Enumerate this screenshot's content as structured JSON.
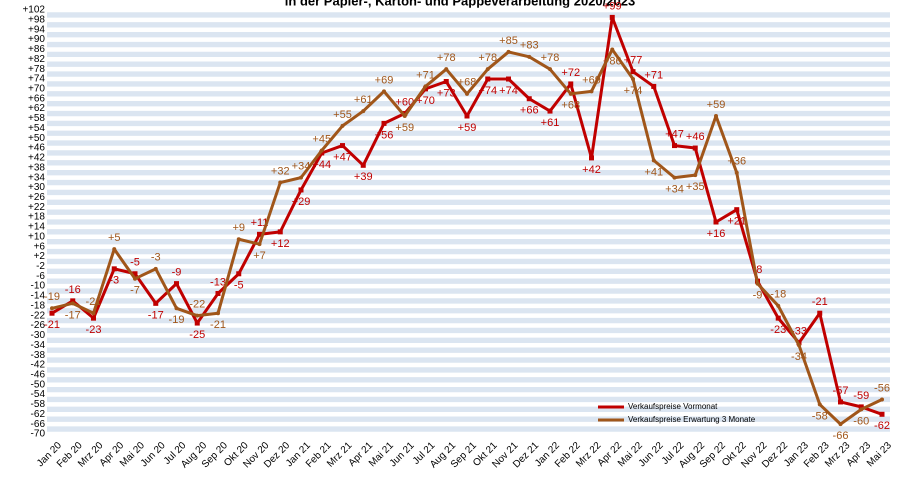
{
  "chart_data": {
    "type": "line",
    "title": "in der Papier-, Karton- und Pappeverarbeitung 2020/2023",
    "categories": [
      "Jan 20",
      "Feb 20",
      "Mrz 20",
      "Apr 20",
      "Mai 20",
      "Jun 20",
      "Jul 20",
      "Aug 20",
      "Sep 20",
      "Okt 20",
      "Nov 20",
      "Dez 20",
      "Jan 21",
      "Feb 21",
      "Mrz 21",
      "Apr 21",
      "Mai 21",
      "Jun 21",
      "Jul 21",
      "Aug 21",
      "Sep 21",
      "Okt 21",
      "Nov 21",
      "Dez 21",
      "Jan 22",
      "Feb 22",
      "Mrz 22",
      "Apr 22",
      "Mai 22",
      "Jun 22",
      "Jul 22",
      "Aug 22",
      "Sep 22",
      "Okt 22",
      "Nov 22",
      "Dez 22",
      "Jan 23",
      "Feb 23",
      "Mrz 23",
      "Apr 23",
      "Mai 23"
    ],
    "series": [
      {
        "name": "Verkaufspreise Vormonat",
        "color": "#c00000",
        "values": [
          -21,
          -16,
          -23,
          -3,
          -5,
          -17,
          -9,
          -25,
          -13,
          -5,
          11,
          12,
          29,
          44,
          47,
          39,
          56,
          60,
          70,
          73,
          59,
          74,
          74,
          66,
          61,
          72,
          42,
          99,
          77,
          71,
          47,
          46,
          16,
          21,
          -8,
          -23,
          -33,
          -21,
          -57,
          -59,
          -62
        ],
        "value_labels": [
          "-21",
          "-16",
          "-23",
          "-3",
          "-5",
          "-17",
          "-9",
          "-25",
          "-13",
          "-5",
          "+11",
          "+12",
          "+29",
          "+44",
          "+47",
          "+39",
          "+56",
          "+60",
          "+70",
          "+73",
          "+59",
          "+74",
          "+74",
          "+66",
          "+61",
          "+72",
          "+42",
          "+99",
          "+77",
          "+71",
          "+47",
          "+46",
          "+16",
          "+21",
          "-8",
          "-23",
          "-33",
          "-21",
          "-57",
          "-59",
          "-62"
        ]
      },
      {
        "name": "Verkaufspreise Erwartung 3 Monate",
        "color": "#a0561a",
        "values": [
          -19,
          -17,
          -21,
          5,
          -7,
          -3,
          -19,
          -22,
          -21,
          9,
          7,
          32,
          34,
          45,
          55,
          61,
          69,
          59,
          71,
          78,
          68,
          78,
          85,
          83,
          78,
          68,
          69,
          86,
          74,
          41,
          34,
          35,
          59,
          36,
          -9,
          -18,
          -34,
          -58,
          -66,
          -60,
          -56
        ],
        "value_labels": [
          "-19",
          "-17",
          "-21",
          "+5",
          "-7",
          "-3",
          "-19",
          "-22",
          "-21",
          "+9",
          "+7",
          "+32",
          "+34",
          "+45",
          "+55",
          "+61",
          "+69",
          "+59",
          "+71",
          "+78",
          "+68",
          "+78",
          "+85",
          "+83",
          "+78",
          "+68",
          "+69",
          "+86",
          "+74",
          "+41",
          "+34",
          "+35",
          "+59",
          "+36",
          "-9",
          "-18",
          "-34",
          "-58",
          "-66",
          "-60",
          "-56"
        ]
      }
    ],
    "ylim": [
      -70,
      102
    ],
    "yticks": [
      {
        "value": 102,
        "label": "+102"
      },
      {
        "value": 98,
        "label": "+98"
      },
      {
        "value": 94,
        "label": "+94"
      },
      {
        "value": 90,
        "label": "+90"
      },
      {
        "value": 86,
        "label": "+86"
      },
      {
        "value": 82,
        "label": "+82"
      },
      {
        "value": 78,
        "label": "+78"
      },
      {
        "value": 74,
        "label": "+74"
      },
      {
        "value": 70,
        "label": "+70"
      },
      {
        "value": 66,
        "label": "+66"
      },
      {
        "value": 62,
        "label": "+62"
      },
      {
        "value": 58,
        "label": "+58"
      },
      {
        "value": 54,
        "label": "+54"
      },
      {
        "value": 50,
        "label": "+50"
      },
      {
        "value": 46,
        "label": "+46"
      },
      {
        "value": 42,
        "label": "+42"
      },
      {
        "value": 38,
        "label": "+38"
      },
      {
        "value": 34,
        "label": "+34"
      },
      {
        "value": 30,
        "label": "+30"
      },
      {
        "value": 26,
        "label": "+26"
      },
      {
        "value": 22,
        "label": "+22"
      },
      {
        "value": 18,
        "label": "+18"
      },
      {
        "value": 14,
        "label": "+14"
      },
      {
        "value": 10,
        "label": "+10"
      },
      {
        "value": 6,
        "label": "+6"
      },
      {
        "value": 2,
        "label": "+2"
      },
      -2,
      -6,
      -10,
      -14,
      -18,
      -22,
      -26,
      -30,
      -34,
      -38,
      -42,
      -46,
      -50,
      -54,
      -58,
      -62,
      -66,
      -70
    ],
    "grid": true,
    "legend": "lower right"
  }
}
